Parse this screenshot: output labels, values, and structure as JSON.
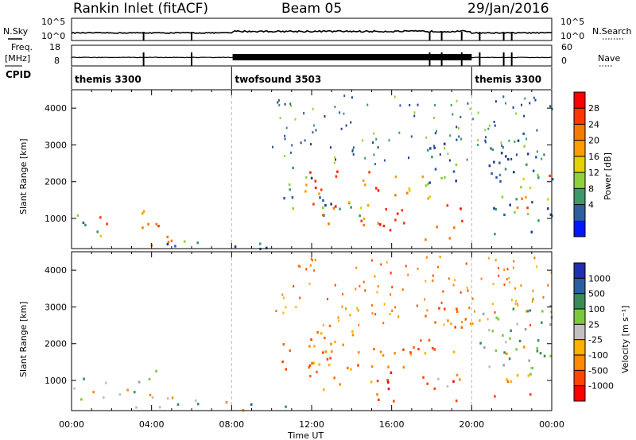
{
  "header": {
    "station": "Rankin Inlet (fitACF)",
    "beam": "Beam 05",
    "date": "29/Jan/2016"
  },
  "strip_labels": {
    "nsky": "N.Sky",
    "freq_top": "Freq.",
    "freq_unit": "[MHz]",
    "cpid": "CPID",
    "nsearch": "N.Search",
    "nave": "Nave",
    "nsky_ticks": [
      "10^5",
      "10^0"
    ],
    "nsearch_ticks": [
      "10^5",
      "10^0"
    ],
    "freq_ticks": [
      "18",
      "8"
    ],
    "nave_ticks": [
      "60",
      "0"
    ]
  },
  "cpid_segments": [
    {
      "label": "themis 3300",
      "start_h": 0,
      "end_h": 8
    },
    {
      "label": "twofsound 3503",
      "start_h": 8,
      "end_h": 20
    },
    {
      "label": "themis 3300",
      "start_h": 20,
      "end_h": 24
    }
  ],
  "chart_data": [
    {
      "type": "heatmap",
      "panel": "power",
      "ylabel": "Slant Range [km]",
      "ylim": [
        180,
        4500
      ],
      "yticks": [
        1000,
        2000,
        3000,
        4000
      ],
      "xlim": [
        0,
        24
      ],
      "colorbar": {
        "label": "Power [dB]",
        "ticks": [
          "28",
          "24",
          "20",
          "16",
          "12",
          "8",
          "4"
        ],
        "colors": [
          "#ff0000",
          "#ff3800",
          "#f57a00",
          "#ff9d00",
          "#e3d200",
          "#8fd23c",
          "#3a9a6a",
          "#2f5e9e",
          "#0017ff"
        ]
      }
    },
    {
      "type": "heatmap",
      "panel": "velocity",
      "ylabel": "Slant Range [km]",
      "ylim": [
        180,
        4500
      ],
      "yticks": [
        1000,
        2000,
        3000,
        4000
      ],
      "xlim": [
        0,
        24
      ],
      "xticks": [
        "00:00",
        "04:00",
        "08:00",
        "12:00",
        "16:00",
        "20:00",
        "00:00"
      ],
      "xlabel": "Time UT",
      "colorbar": {
        "label": "Velocity [m s⁻¹]",
        "ticks": [
          "1000",
          "500",
          "100",
          "25",
          "-25",
          "-100",
          "-500",
          "-1000"
        ],
        "colors": [
          "#1f2fb0",
          "#2a5ea0",
          "#3a8a5a",
          "#7cc83c",
          "#c0c0c0",
          "#ffb000",
          "#ff8a00",
          "#ff4400",
          "#ff0000"
        ]
      }
    }
  ],
  "blobs": {
    "power": [
      {
        "t0": 0.0,
        "t1": 0.8,
        "r0": 500,
        "r1": 1500,
        "mix": "cold"
      },
      {
        "t0": 0.8,
        "t1": 2.5,
        "r0": 550,
        "r1": 1100,
        "mix": "warm"
      },
      {
        "t0": 2.0,
        "t1": 5.0,
        "r0": 300,
        "r1": 900,
        "mix": "hot"
      },
      {
        "t0": 3.2,
        "t1": 4.2,
        "r0": 700,
        "r1": 1600,
        "mix": "warm"
      },
      {
        "t0": 4.6,
        "t1": 8.5,
        "r0": 200,
        "r1": 550,
        "mix": "cold"
      },
      {
        "t0": 8.5,
        "t1": 11.0,
        "r0": 180,
        "r1": 500,
        "mix": "cold"
      },
      {
        "t0": 10.5,
        "t1": 13.0,
        "r0": 1100,
        "r1": 2600,
        "mix": "cold"
      },
      {
        "t0": 11.5,
        "t1": 15.5,
        "r0": 1300,
        "r1": 2400,
        "mix": "hot"
      },
      {
        "t0": 12.0,
        "t1": 16.0,
        "r0": 700,
        "r1": 1500,
        "mix": "warm"
      },
      {
        "t0": 15.0,
        "t1": 19.5,
        "r0": 450,
        "r1": 1400,
        "mix": "hot"
      },
      {
        "t0": 15.5,
        "t1": 18.5,
        "r0": 1500,
        "r1": 2200,
        "mix": "warm"
      },
      {
        "t0": 17.0,
        "t1": 19.5,
        "r0": 1800,
        "r1": 3300,
        "mix": "cold"
      },
      {
        "t0": 20.2,
        "t1": 24.0,
        "r0": 1200,
        "r1": 3400,
        "mix": "cold"
      },
      {
        "t0": 21.5,
        "t1": 24.0,
        "r0": 1300,
        "r1": 2200,
        "mix": "warm"
      },
      {
        "t0": 21.0,
        "t1": 24.0,
        "r0": 600,
        "r1": 1200,
        "mix": "cold"
      }
    ],
    "velocity": [
      {
        "t0": 0.0,
        "t1": 0.8,
        "r0": 500,
        "r1": 1500,
        "mix": "vmix"
      },
      {
        "t0": 0.8,
        "t1": 2.5,
        "r0": 550,
        "r1": 1100,
        "mix": "vgreen"
      },
      {
        "t0": 2.0,
        "t1": 5.0,
        "r0": 300,
        "r1": 900,
        "mix": "vgreen"
      },
      {
        "t0": 3.2,
        "t1": 4.2,
        "r0": 700,
        "r1": 1600,
        "mix": "vgrey"
      },
      {
        "t0": 4.6,
        "t1": 8.5,
        "r0": 200,
        "r1": 550,
        "mix": "vgreen"
      },
      {
        "t0": 8.5,
        "t1": 11.0,
        "r0": 180,
        "r1": 500,
        "mix": "vmix"
      },
      {
        "t0": 10.5,
        "t1": 13.0,
        "r0": 1100,
        "r1": 2600,
        "mix": "vorange"
      },
      {
        "t0": 11.5,
        "t1": 15.5,
        "r0": 1300,
        "r1": 2400,
        "mix": "vorange"
      },
      {
        "t0": 12.0,
        "t1": 16.0,
        "r0": 700,
        "r1": 1500,
        "mix": "vorange"
      },
      {
        "t0": 15.0,
        "t1": 19.5,
        "r0": 450,
        "r1": 1400,
        "mix": "vred"
      },
      {
        "t0": 15.5,
        "t1": 18.5,
        "r0": 1500,
        "r1": 2200,
        "mix": "vorange"
      },
      {
        "t0": 17.0,
        "t1": 19.5,
        "r0": 1800,
        "r1": 3300,
        "mix": "vorange"
      },
      {
        "t0": 20.2,
        "t1": 24.0,
        "r0": 1200,
        "r1": 3400,
        "mix": "vgrey"
      },
      {
        "t0": 21.5,
        "t1": 24.0,
        "r0": 1300,
        "r1": 2200,
        "mix": "vgreen"
      },
      {
        "t0": 21.0,
        "t1": 24.0,
        "r0": 600,
        "r1": 1200,
        "mix": "vorange"
      }
    ]
  },
  "palettes": {
    "cold": [
      "#2f5e9e",
      "#3a9a6a",
      "#8fd23c",
      "#1f3f8e"
    ],
    "warm": [
      "#ff9d00",
      "#f57a00",
      "#e3d200",
      "#3a9a6a",
      "#ff3800"
    ],
    "hot": [
      "#ff0000",
      "#ff3800",
      "#f57a00",
      "#ff2000",
      "#ff9d00"
    ],
    "vmix": [
      "#3a8a5a",
      "#7cc83c",
      "#c0c0c0",
      "#ff8a00",
      "#2a5ea0"
    ],
    "vgreen": [
      "#3a8a5a",
      "#7cc83c",
      "#c0c0c0",
      "#ff8a00"
    ],
    "vgrey": [
      "#c0c0c0",
      "#a0a0a0",
      "#7cc83c",
      "#3a8a5a"
    ],
    "vorange": [
      "#ff8a00",
      "#ffb000",
      "#ff4400",
      "#ff6a00"
    ],
    "vred": [
      "#ff4400",
      "#ff0000",
      "#ff8a00",
      "#c0c0c0"
    ]
  }
}
